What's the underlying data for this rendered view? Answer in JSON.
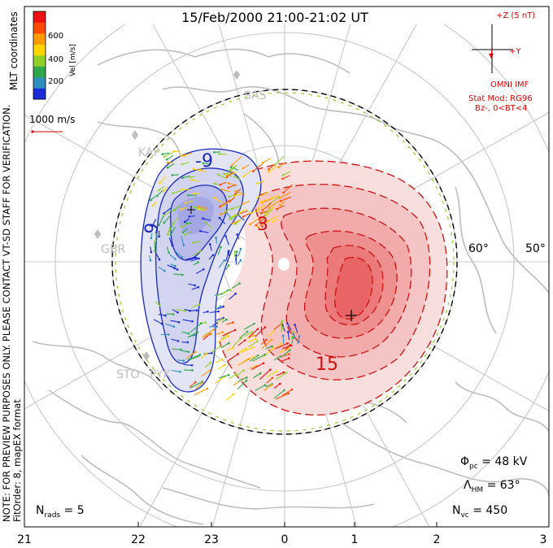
{
  "title": "15/Feb/2000 21:00-21:02 UT",
  "coordinates_label": "MLT coordinates",
  "notes": {
    "preview": "NOTE: FOR PREVIEW PURPOSES ONLY. PLEASE CONTACT VT-SD STAFF FOR VERIFICATION.",
    "fitorder": "FitOrder: 8, mapEX format"
  },
  "velocity_scale": {
    "label": "Vel [m/s]",
    "ticks": [
      "200",
      "400",
      "600"
    ],
    "colors": [
      "#1a2bd6",
      "#2e8fbf",
      "#2ea84a",
      "#8fd12a",
      "#ffd400",
      "#ff9a00",
      "#ff4a00",
      "#ee1111"
    ]
  },
  "reference_vector": {
    "label": "1000 m/s",
    "color": "#cc0000"
  },
  "imf": {
    "plus_z": "+Z (5 nT)",
    "plus_y": "+Y",
    "source": "OMNI IMF",
    "stat_model": "Stat Mod: RG96",
    "condition": "Bz-, 0<BT<4",
    "color": "#dd0000"
  },
  "stations": [
    "SAS",
    "KAP",
    "GBR",
    "STO",
    "PYK"
  ],
  "latitude_labels": [
    "60°",
    "50°"
  ],
  "mlt_labels": [
    "21",
    "22",
    "23",
    "0",
    "1",
    "2",
    "3"
  ],
  "contours": {
    "negative_labels": [
      "-9",
      "9"
    ],
    "positive_labels": [
      "3",
      "15"
    ],
    "negative_color": "#1a2bb8",
    "positive_color": "#cc1111"
  },
  "stats": {
    "phi_pc_symbol": "Φ",
    "phi_pc_sub": "pc",
    "phi_pc_value": " = 48 kV",
    "lambda_hm_symbol": "Λ",
    "lambda_hm_sub": "HM",
    "lambda_hm_value": " = 63°",
    "n_vc_symbol": "N",
    "n_vc_sub": "vc",
    "n_vc_value": " = 450",
    "n_rads_symbol": "N",
    "n_rads_sub": "rads",
    "n_rads_value": " = 5"
  }
}
